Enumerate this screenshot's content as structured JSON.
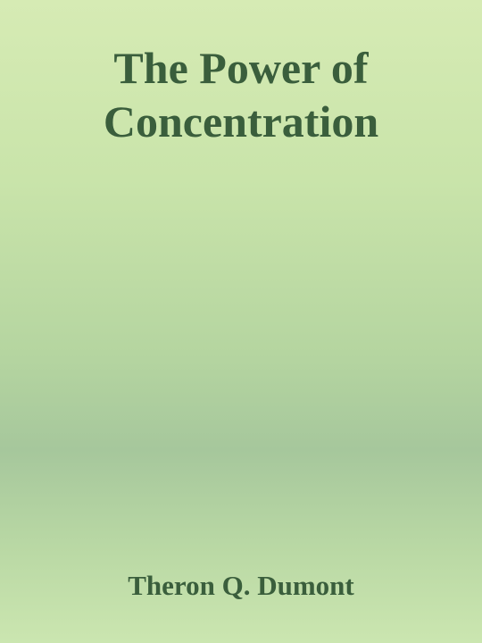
{
  "cover": {
    "title_lines": [
      "The Power of",
      "Concentration"
    ],
    "author": "Theron Q. Dumont",
    "colors": {
      "text": "#3a5e3c",
      "background_top": "#d6ebb4",
      "background_mid": "#a6c79c",
      "background_bottom": "#cbe6b0"
    }
  }
}
